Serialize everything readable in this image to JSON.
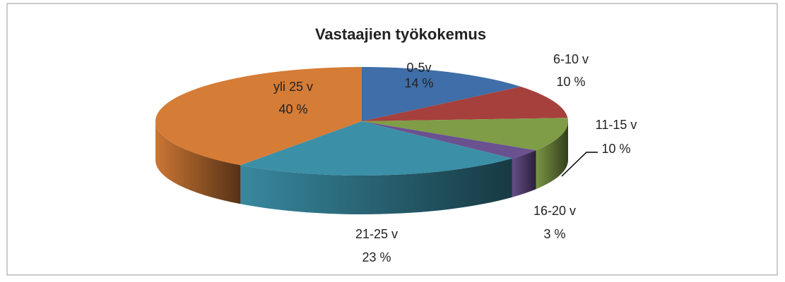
{
  "chart_data": {
    "type": "pie",
    "title": "Vastaajien työkokemus",
    "categories": [
      "0-5v",
      "6-10 v",
      "11-15 v",
      "16-20 v",
      "21-25 v",
      "yli 25 v"
    ],
    "values": [
      14,
      10,
      10,
      3,
      23,
      40
    ],
    "value_labels": [
      "14 %",
      "10 %",
      "10 %",
      "3 %",
      "23 %",
      "40 %"
    ],
    "colors": [
      "#3f6ea8",
      "#a6403d",
      "#7f9d47",
      "#6a5190",
      "#3b8fa7",
      "#d57c37"
    ]
  }
}
